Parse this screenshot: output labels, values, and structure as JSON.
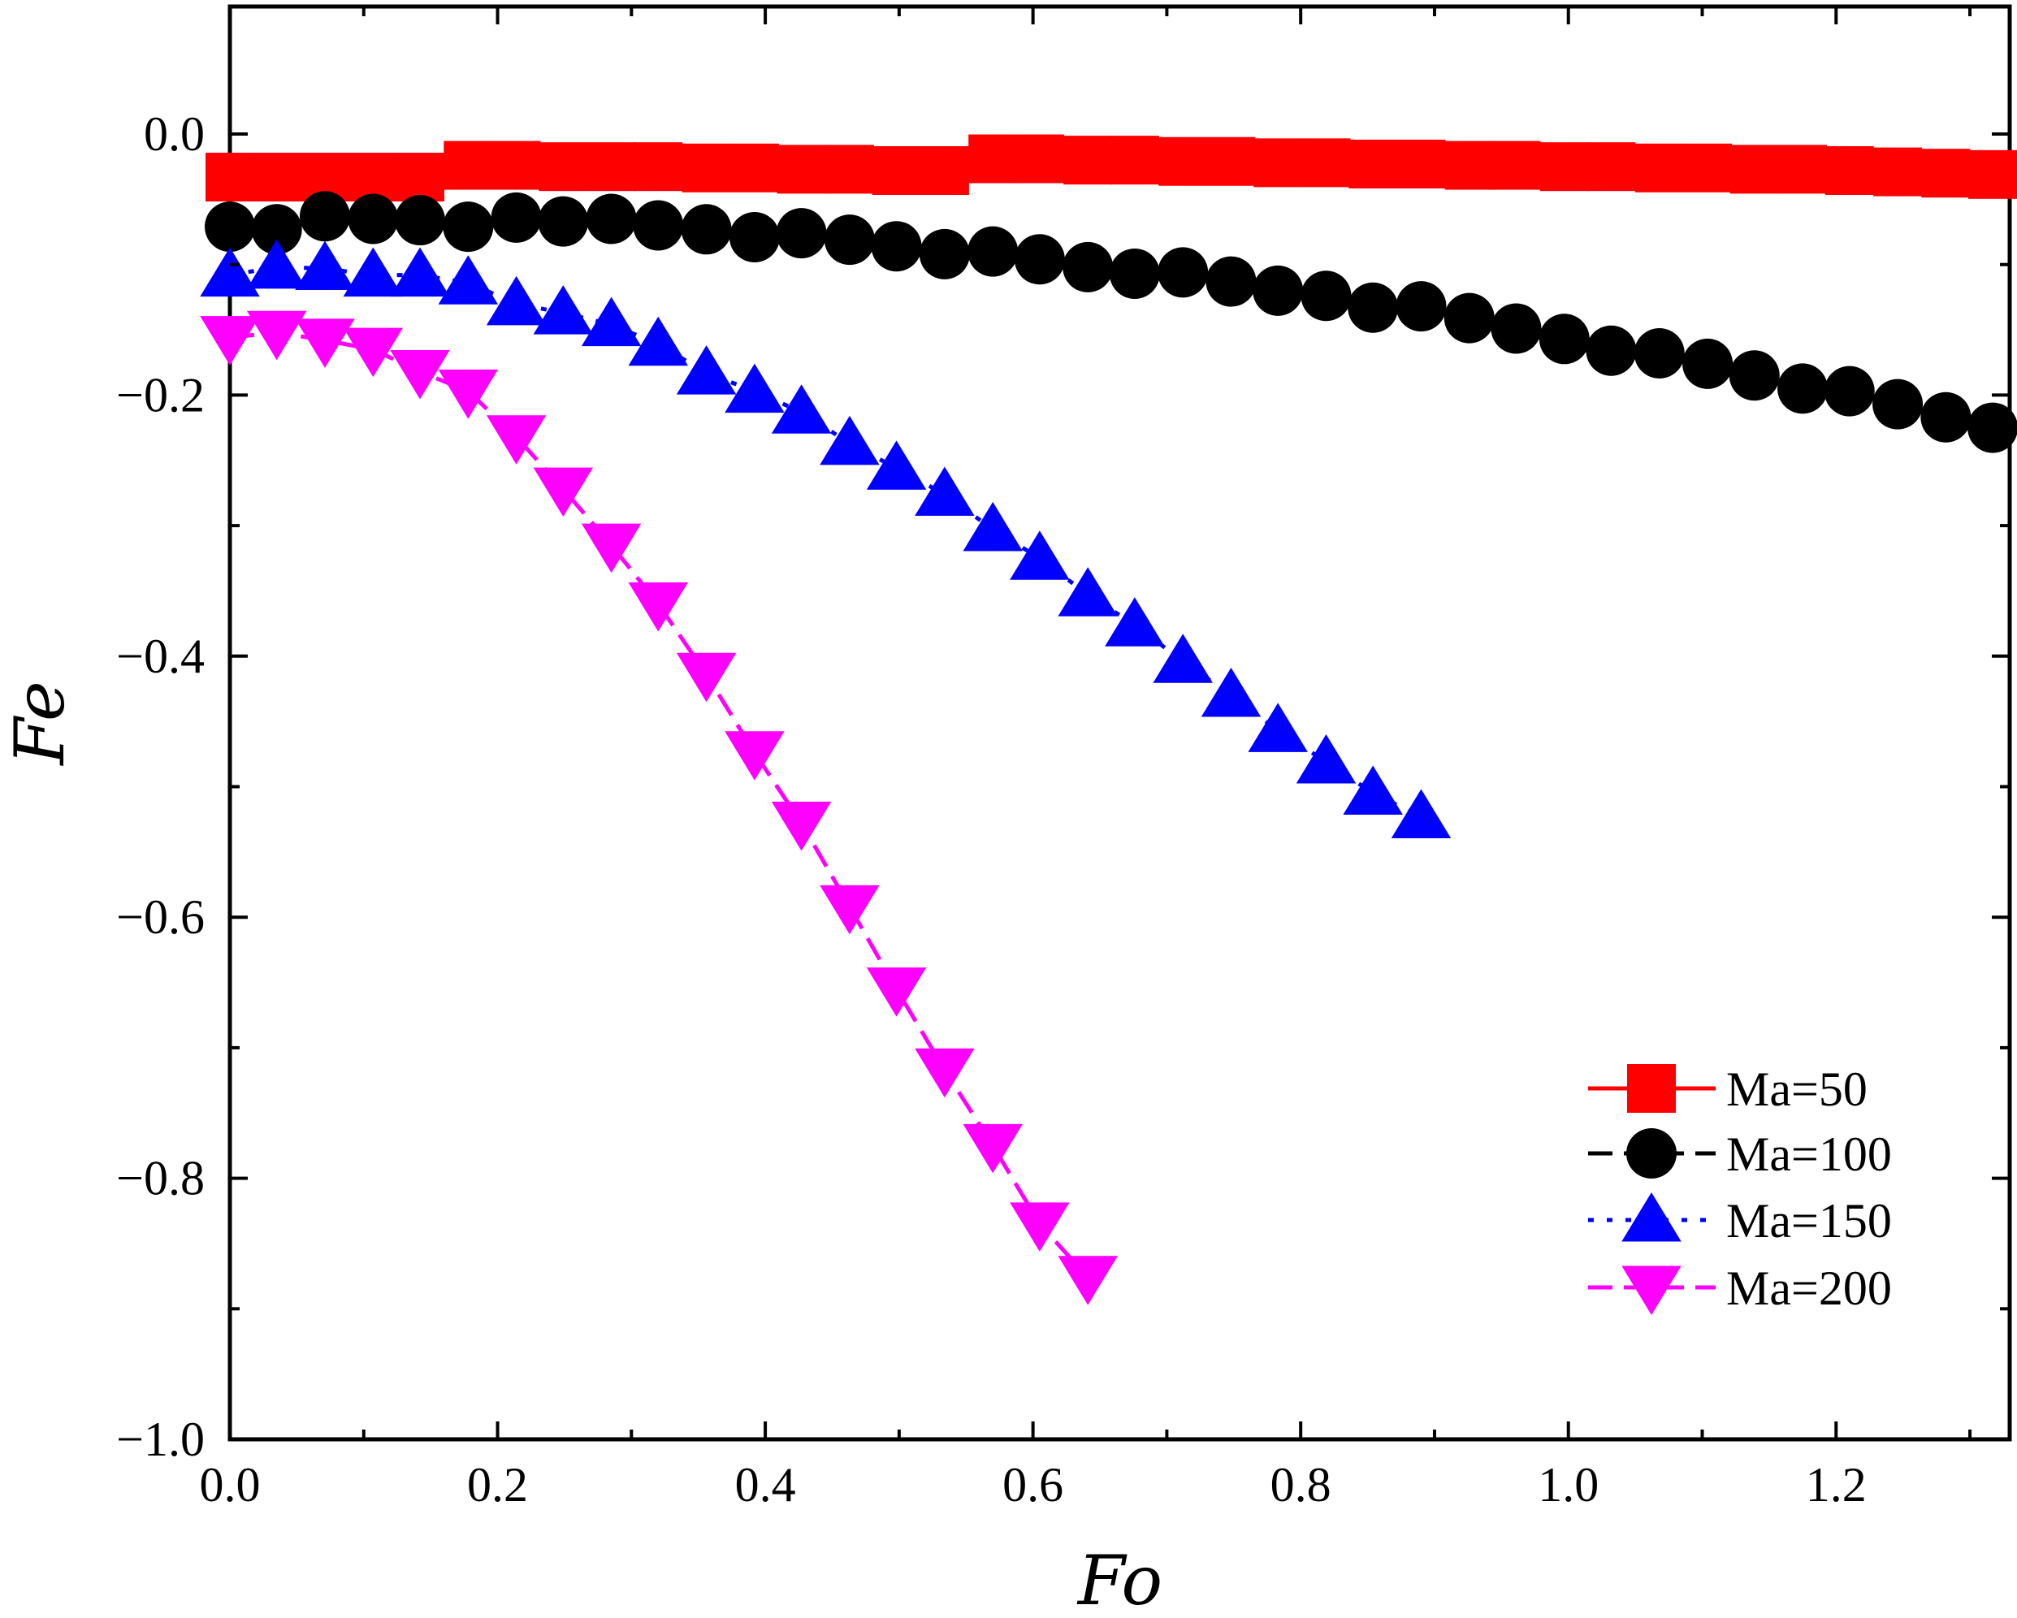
{
  "chart_data": {
    "type": "line",
    "title": "",
    "xlabel": "Fo",
    "ylabel": "Fe",
    "xlim": [
      0.0,
      1.32
    ],
    "ylim": [
      -1.0,
      0.1
    ],
    "x_ticks": [
      0.0,
      0.2,
      0.4,
      0.6,
      0.8,
      1.0,
      1.2
    ],
    "x_tick_labels": [
      "0.0",
      "0.2",
      "0.4",
      "0.6",
      "0.8",
      "1.0",
      "1.2"
    ],
    "y_ticks": [
      0.0,
      -0.2,
      -0.4,
      -0.6,
      -0.8,
      -1.0
    ],
    "y_tick_labels": [
      "0.0",
      "−0.2",
      "−0.4",
      "−0.6",
      "−0.8",
      "−1.0"
    ],
    "grid": false,
    "legend_position": "bottom-right",
    "series": [
      {
        "name": "Ma=50",
        "color": "#ff0000",
        "marker": "square",
        "dash": "solid",
        "x": [
          0.0,
          0.035,
          0.071,
          0.107,
          0.142,
          0.178,
          0.214,
          0.249,
          0.285,
          0.32,
          0.356,
          0.392,
          0.427,
          0.463,
          0.498,
          0.534,
          0.57,
          0.605,
          0.641,
          0.676,
          0.712,
          0.748,
          0.783,
          0.819,
          0.854,
          0.89,
          0.926,
          0.961,
          0.997,
          1.032,
          1.068,
          1.104,
          1.139,
          1.175,
          1.21,
          1.246,
          1.282,
          1.317
        ],
        "y": [
          -0.033,
          -0.033,
          -0.033,
          -0.033,
          -0.033,
          -0.024,
          -0.024,
          -0.025,
          -0.025,
          -0.025,
          -0.026,
          -0.026,
          -0.027,
          -0.027,
          -0.028,
          -0.028,
          -0.019,
          -0.019,
          -0.02,
          -0.02,
          -0.021,
          -0.021,
          -0.022,
          -0.022,
          -0.023,
          -0.023,
          -0.024,
          -0.024,
          -0.025,
          -0.025,
          -0.026,
          -0.026,
          -0.027,
          -0.027,
          -0.028,
          -0.029,
          -0.03,
          -0.031
        ]
      },
      {
        "name": "Ma=100",
        "color": "#000000",
        "marker": "circle",
        "dash": "dash",
        "x": [
          0.0,
          0.035,
          0.071,
          0.107,
          0.142,
          0.178,
          0.214,
          0.249,
          0.285,
          0.32,
          0.356,
          0.392,
          0.427,
          0.463,
          0.498,
          0.534,
          0.57,
          0.605,
          0.641,
          0.676,
          0.712,
          0.748,
          0.783,
          0.819,
          0.854,
          0.89,
          0.926,
          0.961,
          0.997,
          1.032,
          1.068,
          1.104,
          1.139,
          1.175,
          1.21,
          1.246,
          1.282,
          1.317
        ],
        "y": [
          -0.071,
          -0.073,
          -0.063,
          -0.065,
          -0.066,
          -0.071,
          -0.064,
          -0.067,
          -0.065,
          -0.07,
          -0.073,
          -0.079,
          -0.076,
          -0.081,
          -0.086,
          -0.092,
          -0.09,
          -0.096,
          -0.102,
          -0.107,
          -0.106,
          -0.113,
          -0.12,
          -0.124,
          -0.133,
          -0.132,
          -0.141,
          -0.149,
          -0.157,
          -0.166,
          -0.168,
          -0.176,
          -0.185,
          -0.195,
          -0.197,
          -0.207,
          -0.217,
          -0.225
        ]
      },
      {
        "name": "Ma=150",
        "color": "#0000ff",
        "marker": "triangle-up",
        "dash": "dot",
        "x": [
          0.0,
          0.035,
          0.071,
          0.107,
          0.142,
          0.178,
          0.214,
          0.249,
          0.285,
          0.32,
          0.356,
          0.392,
          0.427,
          0.463,
          0.498,
          0.534,
          0.57,
          0.605,
          0.641,
          0.676,
          0.712,
          0.748,
          0.783,
          0.819,
          0.854,
          0.89
        ],
        "y": [
          -0.108,
          -0.102,
          -0.103,
          -0.108,
          -0.108,
          -0.114,
          -0.13,
          -0.137,
          -0.146,
          -0.161,
          -0.183,
          -0.197,
          -0.213,
          -0.237,
          -0.256,
          -0.276,
          -0.303,
          -0.325,
          -0.353,
          -0.376,
          -0.404,
          -0.43,
          -0.457,
          -0.481,
          -0.505,
          -0.523
        ]
      },
      {
        "name": "Ma=200",
        "color": "#ff00ff",
        "marker": "triangle-down",
        "dash": "dash",
        "x": [
          0.0,
          0.035,
          0.071,
          0.107,
          0.142,
          0.178,
          0.214,
          0.249,
          0.285,
          0.32,
          0.356,
          0.392,
          0.427,
          0.463,
          0.498,
          0.534,
          0.57,
          0.605,
          0.641
        ],
        "y": [
          -0.156,
          -0.152,
          -0.158,
          -0.165,
          -0.182,
          -0.197,
          -0.232,
          -0.272,
          -0.315,
          -0.36,
          -0.414,
          -0.474,
          -0.528,
          -0.592,
          -0.655,
          -0.717,
          -0.775,
          -0.835,
          -0.876
        ]
      }
    ]
  }
}
